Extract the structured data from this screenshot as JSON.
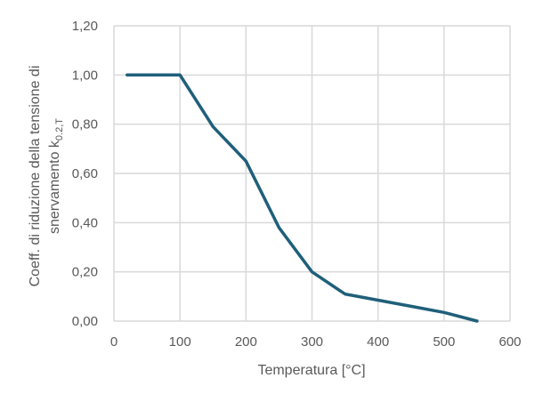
{
  "chart_data": {
    "type": "line",
    "xlabel": "Temperatura [°C]",
    "ylabel_line1": "Coeff. di riduzione della tensione di",
    "ylabel_line2_main": "snervamento k",
    "ylabel_line2_sub": "0.2,T",
    "xlim": [
      0,
      600
    ],
    "ylim": [
      0,
      1.2
    ],
    "x_ticks": [
      0,
      100,
      200,
      300,
      400,
      500,
      600
    ],
    "x_tick_labels": [
      "0",
      "100",
      "200",
      "300",
      "400",
      "500",
      "600"
    ],
    "y_ticks": [
      0,
      0.2,
      0.4,
      0.6,
      0.8,
      1.0,
      1.2
    ],
    "y_tick_labels": [
      "0,00",
      "0,20",
      "0,40",
      "0,60",
      "0,80",
      "1,00",
      "1,20"
    ],
    "grid": true,
    "series": [
      {
        "color": "#1f5f7a",
        "x": [
          20,
          100,
          150,
          200,
          250,
          300,
          350,
          400,
          450,
          500,
          550
        ],
        "y": [
          1.0,
          1.0,
          0.79,
          0.65,
          0.38,
          0.2,
          0.11,
          0.085,
          0.06,
          0.035,
          0.0
        ]
      }
    ]
  }
}
